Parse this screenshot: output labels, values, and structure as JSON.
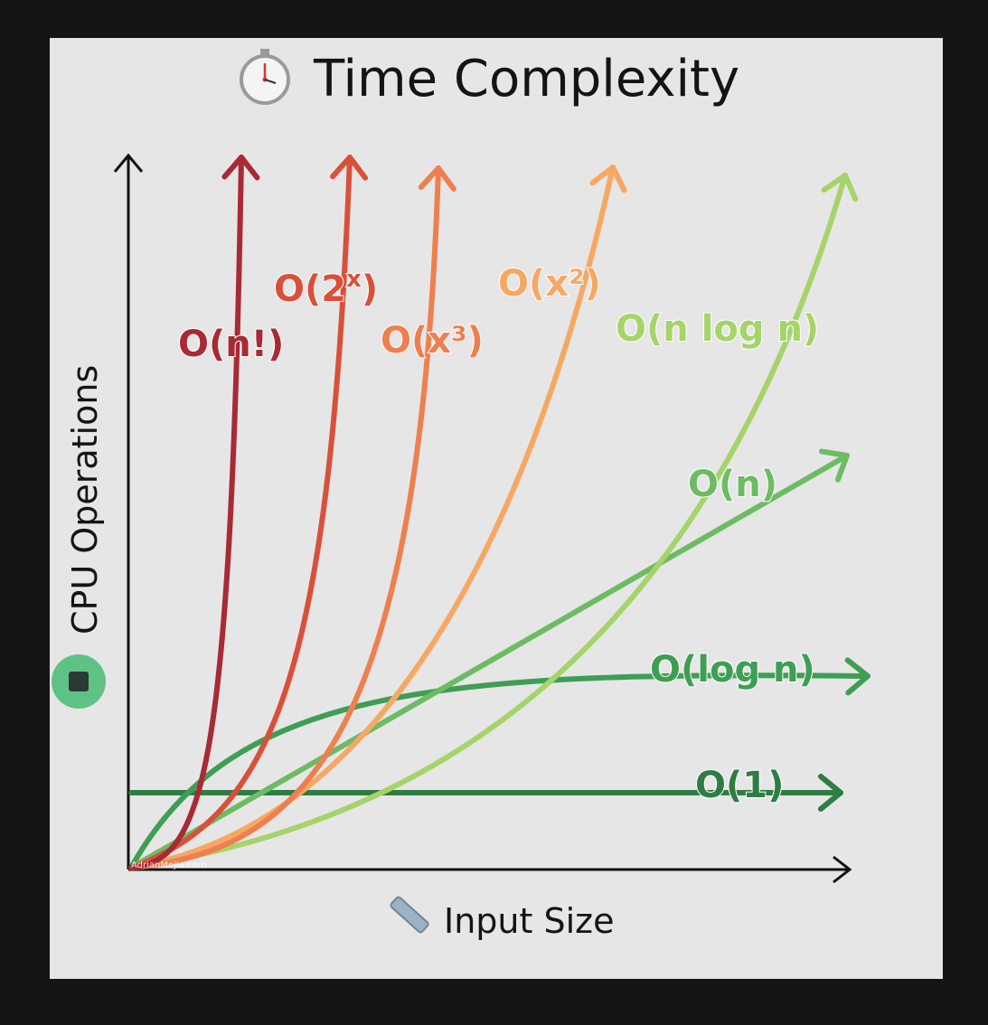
{
  "chart_data": {
    "type": "line",
    "title": "Time Complexity",
    "xlabel": "Input Size",
    "ylabel": "CPU Operations",
    "watermark": "AdrianMejia.com",
    "series": [
      {
        "name": "O(1)",
        "color": "#2e7d43",
        "kind": "constant",
        "text": "O(1)"
      },
      {
        "name": "O(log n)",
        "color": "#3f9e54",
        "kind": "log",
        "text": "O(log n)"
      },
      {
        "name": "O(n)",
        "color": "#6dbb63",
        "kind": "linear",
        "text": "O(n)"
      },
      {
        "name": "O(n log n)",
        "color": "#a5d46a",
        "kind": "nlogn",
        "text": "O(n log n)"
      },
      {
        "name": "O(x²)",
        "color": "#f6a863",
        "kind": "square",
        "text": "O(x²)"
      },
      {
        "name": "O(x³)",
        "color": "#ee7f4e",
        "kind": "cube",
        "text": "O(x³)"
      },
      {
        "name": "O(2ˣ)",
        "color": "#d9503a",
        "kind": "exp",
        "text": "O(2",
        "sup": "x",
        "close": ")"
      },
      {
        "name": "O(n!)",
        "color": "#a82a35",
        "kind": "fact",
        "text": "O(n!)"
      }
    ]
  }
}
